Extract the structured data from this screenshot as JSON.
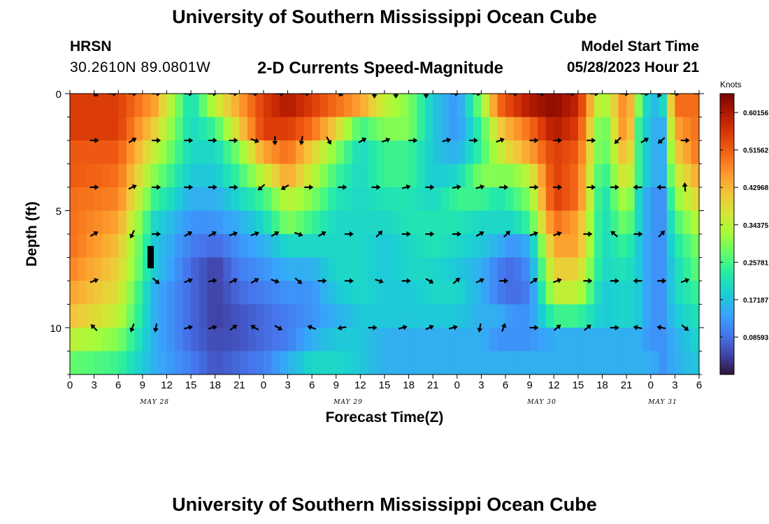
{
  "header": {
    "title": "University of Southern Mississippi Ocean Cube",
    "station": "HRSN",
    "coords": "30.2610N  89.0801W",
    "subtitle": "2-D Currents Speed-Magnitude",
    "model_label": "Model Start Time",
    "model_time": "05/28/2023 Hour 21"
  },
  "footer": {
    "title": "University of Southern Mississippi Ocean Cube"
  },
  "chart_data": {
    "type": "heatmap",
    "title": "2-D Currents Speed-Magnitude",
    "xlabel": "Forecast Time(Z)",
    "ylabel": "Depth (ft)",
    "x_ticks": [
      "0",
      "3",
      "6",
      "9",
      "12",
      "15",
      "18",
      "21",
      "0",
      "3",
      "6",
      "9",
      "12",
      "15",
      "18",
      "21",
      "0",
      "3",
      "6",
      "9",
      "12",
      "15",
      "18",
      "21",
      "0",
      "3",
      "6"
    ],
    "y_ticks": [
      "0",
      "5",
      "10"
    ],
    "ylim": [
      0,
      12
    ],
    "date_labels": [
      {
        "label": "MAY 28",
        "hour_index": 3.5
      },
      {
        "label": "MAY 29",
        "hour_index": 11.5
      },
      {
        "label": "MAY 30",
        "hour_index": 19.5
      },
      {
        "label": "MAY 31",
        "hour_index": 24.5
      }
    ],
    "colorbar": {
      "unit": "Knots",
      "min": 0.0,
      "max": 0.645,
      "labels": [
        "0.60156",
        "0.51562",
        "0.42968",
        "0.34375",
        "0.25781",
        "0.17187",
        "0.08593"
      ]
    },
    "depth_rows": [
      0.5,
      1.5,
      2.5,
      3.5,
      4.5,
      5.5,
      6.5,
      7.5,
      8.5,
      9.5,
      10.5,
      11.5
    ],
    "time_anchors": [
      0,
      2,
      3.5,
      5,
      6,
      7,
      8,
      9,
      10,
      11,
      12,
      13,
      14,
      15,
      16,
      17,
      17.7,
      18.3,
      19,
      20,
      21,
      22,
      23,
      23.5,
      24,
      24.5,
      25,
      26
    ],
    "speed_grid": [
      [
        0.55,
        0.55,
        0.45,
        0.2,
        0.35,
        0.45,
        0.55,
        0.6,
        0.55,
        0.5,
        0.45,
        0.35,
        0.3,
        0.18,
        0.12,
        0.3,
        0.5,
        0.55,
        0.6,
        0.63,
        0.58,
        0.3,
        0.5,
        0.3,
        0.15,
        0.2,
        0.5,
        0.5
      ],
      [
        0.55,
        0.55,
        0.4,
        0.2,
        0.25,
        0.4,
        0.55,
        0.55,
        0.5,
        0.4,
        0.25,
        0.3,
        0.3,
        0.18,
        0.12,
        0.25,
        0.4,
        0.45,
        0.5,
        0.6,
        0.55,
        0.25,
        0.5,
        0.25,
        0.15,
        0.15,
        0.45,
        0.5
      ],
      [
        0.52,
        0.52,
        0.35,
        0.2,
        0.2,
        0.3,
        0.45,
        0.5,
        0.4,
        0.3,
        0.2,
        0.25,
        0.25,
        0.18,
        0.15,
        0.25,
        0.35,
        0.4,
        0.45,
        0.55,
        0.52,
        0.25,
        0.45,
        0.25,
        0.15,
        0.15,
        0.4,
        0.5
      ],
      [
        0.52,
        0.5,
        0.3,
        0.18,
        0.18,
        0.25,
        0.35,
        0.45,
        0.35,
        0.25,
        0.2,
        0.25,
        0.25,
        0.18,
        0.2,
        0.3,
        0.3,
        0.3,
        0.35,
        0.55,
        0.5,
        0.22,
        0.4,
        0.25,
        0.15,
        0.15,
        0.35,
        0.45
      ],
      [
        0.5,
        0.48,
        0.25,
        0.15,
        0.15,
        0.2,
        0.25,
        0.35,
        0.3,
        0.22,
        0.2,
        0.22,
        0.22,
        0.2,
        0.25,
        0.25,
        0.22,
        0.25,
        0.3,
        0.55,
        0.5,
        0.2,
        0.35,
        0.2,
        0.12,
        0.12,
        0.3,
        0.4
      ],
      [
        0.5,
        0.45,
        0.2,
        0.12,
        0.12,
        0.15,
        0.2,
        0.3,
        0.25,
        0.2,
        0.2,
        0.2,
        0.22,
        0.22,
        0.22,
        0.2,
        0.2,
        0.2,
        0.25,
        0.5,
        0.45,
        0.2,
        0.3,
        0.2,
        0.12,
        0.12,
        0.25,
        0.35
      ],
      [
        0.5,
        0.42,
        0.18,
        0.1,
        0.08,
        0.12,
        0.15,
        0.2,
        0.2,
        0.2,
        0.2,
        0.18,
        0.2,
        0.22,
        0.2,
        0.18,
        0.15,
        0.12,
        0.15,
        0.45,
        0.45,
        0.2,
        0.25,
        0.18,
        0.12,
        0.12,
        0.22,
        0.3
      ],
      [
        0.48,
        0.4,
        0.18,
        0.08,
        0.04,
        0.1,
        0.12,
        0.15,
        0.15,
        0.2,
        0.2,
        0.18,
        0.2,
        0.2,
        0.18,
        0.15,
        0.1,
        0.08,
        0.12,
        0.4,
        0.4,
        0.2,
        0.22,
        0.18,
        0.12,
        0.12,
        0.2,
        0.28
      ],
      [
        0.45,
        0.38,
        0.15,
        0.08,
        0.04,
        0.08,
        0.1,
        0.12,
        0.12,
        0.18,
        0.2,
        0.18,
        0.18,
        0.2,
        0.2,
        0.15,
        0.1,
        0.08,
        0.1,
        0.35,
        0.35,
        0.18,
        0.2,
        0.18,
        0.12,
        0.12,
        0.2,
        0.25
      ],
      [
        0.42,
        0.35,
        0.15,
        0.08,
        0.04,
        0.06,
        0.08,
        0.1,
        0.12,
        0.15,
        0.18,
        0.18,
        0.18,
        0.18,
        0.18,
        0.15,
        0.15,
        0.12,
        0.12,
        0.25,
        0.25,
        0.18,
        0.2,
        0.18,
        0.12,
        0.12,
        0.18,
        0.22
      ],
      [
        0.35,
        0.3,
        0.15,
        0.08,
        0.05,
        0.06,
        0.08,
        0.1,
        0.15,
        0.18,
        0.18,
        0.15,
        0.15,
        0.15,
        0.15,
        0.15,
        0.12,
        0.12,
        0.12,
        0.15,
        0.15,
        0.15,
        0.15,
        0.15,
        0.12,
        0.12,
        0.15,
        0.2
      ],
      [
        0.28,
        0.25,
        0.15,
        0.1,
        0.06,
        0.08,
        0.1,
        0.15,
        0.2,
        0.2,
        0.18,
        0.15,
        0.15,
        0.15,
        0.15,
        0.15,
        0.15,
        0.15,
        0.15,
        0.15,
        0.15,
        0.15,
        0.15,
        0.15,
        0.15,
        0.12,
        0.15,
        0.18
      ]
    ],
    "vectors": [
      {
        "depth": 0,
        "times": [
          3.6,
          6.3,
          9.3,
          12.8,
          17.6,
          21.2,
          24.3,
          27.3,
          31.2,
          35,
          40,
          45.3,
          48.5,
          53,
          57.2,
          60.5,
          66,
          70,
          74.5,
          78,
          82.5,
          85.5,
          87.8,
          90,
          93.5
        ],
        "dirs": [
          30,
          0,
          0,
          0,
          0,
          0,
          0,
          0,
          0,
          0,
          20,
          90,
          90,
          90,
          0,
          0,
          0,
          0,
          0,
          0,
          0,
          0,
          120,
          0,
          0
        ]
      },
      {
        "depth": 2,
        "times": [
          3.6,
          9.3,
          12.8,
          17.6,
          21.2,
          24.3,
          27.5,
          30.5,
          34.5,
          38.5,
          43.5,
          47,
          51,
          56,
          60,
          64,
          69,
          72.5,
          77.5,
          81.5,
          85.5,
          88,
          91.5
        ],
        "dirs": [
          0,
          -30,
          0,
          0,
          0,
          0,
          20,
          90,
          100,
          60,
          -30,
          -20,
          0,
          -15,
          0,
          -20,
          0,
          0,
          0,
          135,
          -30,
          140,
          0
        ]
      },
      {
        "depth": 4,
        "times": [
          3.6,
          9.3,
          12.8,
          17.6,
          21.2,
          24.3,
          28.5,
          32,
          35.5,
          40.5,
          45.5,
          50,
          53.5,
          57.5,
          61,
          64.5,
          69,
          72.5,
          77.5,
          81,
          84.5,
          88,
          91.5
        ],
        "dirs": [
          0,
          -25,
          0,
          0,
          0,
          0,
          140,
          150,
          0,
          0,
          0,
          -15,
          0,
          -10,
          -15,
          0,
          0,
          0,
          0,
          0,
          180,
          180,
          -95
        ]
      },
      {
        "depth": 6,
        "times": [
          3.6,
          9.3,
          12.8,
          17.6,
          21.2,
          24.3,
          27.5,
          30.5,
          34,
          37.5,
          41.5,
          46,
          50,
          53.5,
          57.5,
          61,
          65,
          69,
          72.5,
          77,
          81,
          84.5,
          88
        ],
        "dirs": [
          -30,
          115,
          0,
          -30,
          -30,
          -20,
          -20,
          -30,
          20,
          -30,
          0,
          -45,
          0,
          0,
          0,
          -30,
          -45,
          -20,
          -20,
          0,
          -140,
          0,
          -45
        ]
      },
      {
        "depth": 8,
        "times": [
          3.6,
          12.8,
          17.6,
          21.2,
          24.3,
          27.5,
          30.5,
          34,
          37.5,
          41.5,
          46,
          50,
          53.5,
          57.5,
          61,
          64.5,
          69,
          72.5,
          77,
          81,
          84.5,
          88,
          91.5
        ],
        "dirs": [
          -20,
          40,
          -20,
          -10,
          -25,
          -30,
          20,
          40,
          0,
          0,
          20,
          0,
          30,
          -40,
          -25,
          0,
          -35,
          -20,
          0,
          0,
          180,
          0,
          -20
        ]
      },
      {
        "depth": 10,
        "times": [
          3.6,
          9.3,
          12.8,
          17.6,
          21.2,
          24.3,
          27.5,
          31,
          36,
          40.5,
          45,
          49.5,
          53.5,
          57,
          61,
          64.5,
          69,
          72.5,
          77,
          81,
          84.5,
          88,
          91.5
        ],
        "dirs": [
          -135,
          110,
          100,
          -15,
          -15,
          -35,
          -150,
          30,
          200,
          170,
          0,
          -15,
          -25,
          -15,
          100,
          -70,
          0,
          -40,
          -40,
          0,
          -170,
          -170,
          40
        ]
      }
    ]
  }
}
